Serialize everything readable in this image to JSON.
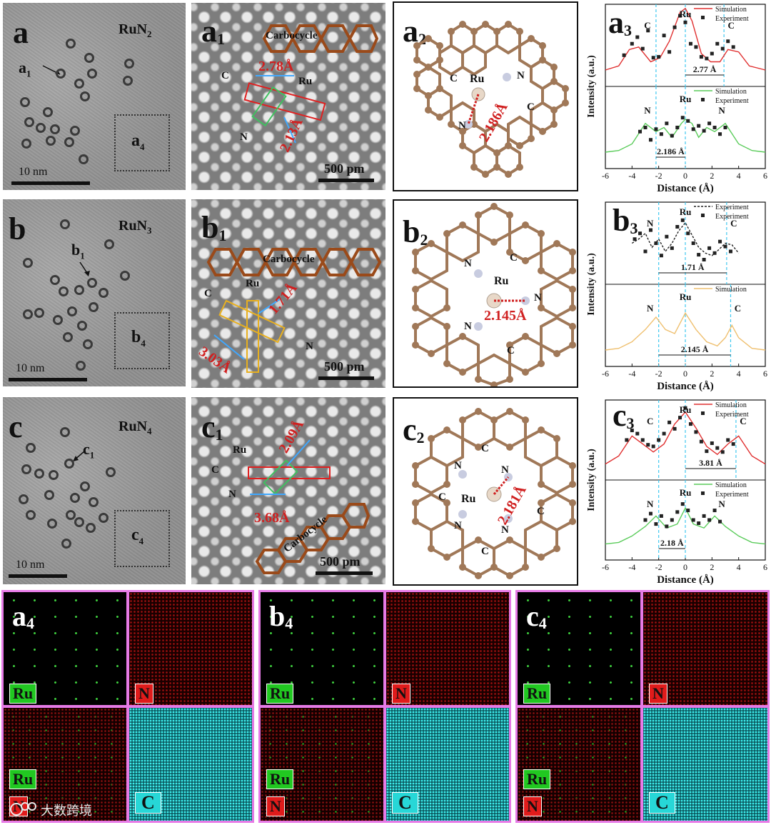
{
  "row_a": {
    "tem": {
      "label": "a",
      "formula_el": "RuN",
      "formula_sub": "2",
      "pointer": "a",
      "pointer_sub": "1",
      "box": "a",
      "box_sub": "4",
      "scale": "10 nm"
    },
    "hr": {
      "label": "a",
      "label_sub": "1",
      "carbocycle": "Carbocycle",
      "d1": "2.78Å",
      "d2": "2.13Å",
      "c": "C",
      "ru": "Ru",
      "n": "N",
      "scale": "500 pm"
    },
    "struct": {
      "label": "a",
      "label_sub": "2",
      "ru": "Ru",
      "n": "N",
      "c": "C",
      "bond": "2.186Å"
    },
    "plot": {
      "label": "a",
      "label_sub": "3"
    }
  },
  "row_b": {
    "tem": {
      "label": "b",
      "formula_el": "RuN",
      "formula_sub": "3",
      "pointer": "b",
      "pointer_sub": "1",
      "box": "b",
      "box_sub": "4",
      "scale": "10 nm"
    },
    "hr": {
      "label": "b",
      "label_sub": "1",
      "carbocycle": "Carbocycle",
      "d1": "1.71Å",
      "d2": "3.03Å",
      "c": "C",
      "ru": "Ru",
      "n": "N",
      "scale": "500 pm"
    },
    "struct": {
      "label": "b",
      "label_sub": "2",
      "ru": "Ru",
      "n": "N",
      "c": "C",
      "bond": "2.145Å"
    },
    "plot": {
      "label": "b",
      "label_sub": "3"
    }
  },
  "row_c": {
    "tem": {
      "label": "c",
      "formula_el": "RuN",
      "formula_sub": "4",
      "pointer": "c",
      "pointer_sub": "1",
      "box": "c",
      "box_sub": "4",
      "scale": "10 nm"
    },
    "hr": {
      "label": "c",
      "label_sub": "1",
      "carbocycle": "Carbocycle",
      "d1": "2.09Å",
      "d2": "3.68Å",
      "c": "C",
      "ru": "Ru",
      "n": "N",
      "scale": "500 pm"
    },
    "struct": {
      "label": "c",
      "label_sub": "2",
      "ru": "Ru",
      "n": "N",
      "c": "C",
      "bond": "2.181Å"
    },
    "plot": {
      "label": "c",
      "label_sub": "3"
    }
  },
  "eds": [
    {
      "label": "a",
      "label_sub": "4",
      "ru": "Ru",
      "n": "N",
      "c": "C"
    },
    {
      "label": "b",
      "label_sub": "4",
      "ru": "Ru",
      "n": "N",
      "c": "C"
    },
    {
      "label": "c",
      "label_sub": "4",
      "ru": "Ru",
      "n": "N",
      "c": "C"
    }
  ],
  "watermark": "大数跨境",
  "chart_data": [
    {
      "type": "line",
      "panel": "a3",
      "xlabel": "Distance (Å)",
      "ylabel": "Intensity (a.u.)",
      "xlim": [
        -6,
        6
      ],
      "xticks": [
        "-6",
        "-4",
        "-2",
        "0",
        "2",
        "4",
        "6"
      ],
      "top": {
        "legend": [
          "Simulation",
          "Experiment"
        ],
        "color": "#e03030",
        "labels": [
          "C",
          "Ru",
          "C"
        ],
        "annotation": "2.77 Å",
        "sim_x": [
          -6,
          -5,
          -4.2,
          -3.5,
          -2.6,
          -1.9,
          -1.2,
          -0.4,
          0,
          0.5,
          1.2,
          1.9,
          2.6,
          3.2,
          4,
          4.8,
          6
        ],
        "sim_y": [
          0.2,
          0.25,
          0.45,
          0.48,
          0.3,
          0.35,
          0.55,
          0.9,
          0.95,
          0.8,
          0.4,
          0.3,
          0.3,
          0.45,
          0.42,
          0.25,
          0.2
        ],
        "exp_x": [
          -4.6,
          -4.0,
          -3.6,
          -3.2,
          -2.8,
          -2.4,
          -2.0,
          -1.6,
          -1.2,
          -0.8,
          -0.4,
          0.0,
          0.4,
          0.8,
          1.2,
          1.6,
          2.0,
          2.4,
          2.8,
          3.2,
          3.6
        ],
        "exp_y": [
          0.38,
          0.52,
          0.6,
          0.46,
          0.68,
          0.35,
          0.36,
          0.62,
          0.42,
          0.72,
          0.86,
          0.78,
          0.52,
          0.48,
          0.36,
          0.34,
          0.4,
          0.52,
          0.46,
          0.55,
          0.48
        ],
        "vlines": [
          -2.2,
          0,
          2.9
        ]
      },
      "bottom": {
        "legend": [
          "Simulation",
          "Experiment"
        ],
        "color": "#5ccc5c",
        "labels": [
          "N",
          "Ru",
          "N"
        ],
        "annotation": "2.186 Å",
        "sim_x": [
          -6,
          -5,
          -4,
          -3,
          -2.2,
          -1.6,
          -1,
          -0.3,
          0,
          0.5,
          1,
          1.6,
          2.2,
          3,
          4,
          5,
          6
        ],
        "sim_y": [
          0.2,
          0.22,
          0.3,
          0.55,
          0.45,
          0.5,
          0.38,
          0.55,
          0.6,
          0.55,
          0.38,
          0.5,
          0.45,
          0.55,
          0.3,
          0.22,
          0.2
        ],
        "exp_x": [
          -3.4,
          -3.0,
          -2.6,
          -2.2,
          -1.8,
          -1.4,
          -1.0,
          -0.6,
          -0.2,
          0.2,
          0.6,
          1.0,
          1.4,
          1.8,
          2.2,
          2.6,
          3.0
        ],
        "exp_y": [
          0.45,
          0.5,
          0.35,
          0.48,
          0.42,
          0.55,
          0.4,
          0.5,
          0.62,
          0.58,
          0.48,
          0.52,
          0.46,
          0.55,
          0.5,
          0.42,
          0.5
        ],
        "vlines": [
          -2.2,
          0
        ]
      }
    },
    {
      "type": "line",
      "panel": "b3",
      "xlabel": "Distance (Å)",
      "ylabel": "Intensity (a.u.)",
      "xlim": [
        -6,
        6
      ],
      "xticks": [
        "-6",
        "-4",
        "-2",
        "0",
        "2",
        "4",
        "6"
      ],
      "top": {
        "legend": [
          "Experiment",
          "Experiment"
        ],
        "color": "#222222",
        "labels": [
          "N",
          "Ru",
          "C"
        ],
        "annotation": "1.71 Å",
        "sim_x": [
          -4,
          -3.5,
          -3,
          -2.5,
          -2,
          -1.5,
          -1,
          -0.5,
          0,
          0.5,
          1,
          1.5,
          2,
          2.5,
          3,
          3.5,
          4
        ],
        "sim_y": [
          0.5,
          0.55,
          0.62,
          0.45,
          0.55,
          0.4,
          0.5,
          0.65,
          0.75,
          0.6,
          0.45,
          0.38,
          0.35,
          0.42,
          0.5,
          0.48,
          0.38
        ],
        "exp_x": [
          -3.8,
          -3.4,
          -3.0,
          -2.6,
          -2.2,
          -1.8,
          -1.4,
          -1.0,
          -0.6,
          -0.2,
          0.2,
          0.6,
          1.0,
          1.4,
          1.8,
          2.2,
          2.6,
          3.0,
          3.4
        ],
        "exp_y": [
          0.55,
          0.62,
          0.4,
          0.66,
          0.5,
          0.35,
          0.58,
          0.44,
          0.7,
          0.78,
          0.62,
          0.5,
          0.36,
          0.3,
          0.44,
          0.38,
          0.52,
          0.46,
          0.4
        ],
        "vlines": [
          -2.0,
          0,
          3.1
        ]
      },
      "bottom": {
        "legend": [
          "Simulation"
        ],
        "color": "#efc070",
        "labels": [
          "N",
          "Ru",
          "C"
        ],
        "annotation": "2.145 Å",
        "sim_x": [
          -6,
          -5,
          -4,
          -3,
          -2.2,
          -1.5,
          -0.8,
          0,
          0.8,
          1.6,
          2.4,
          3,
          3.5,
          4,
          5,
          6
        ],
        "sim_y": [
          0.2,
          0.22,
          0.3,
          0.45,
          0.6,
          0.45,
          0.4,
          0.65,
          0.45,
          0.3,
          0.25,
          0.35,
          0.5,
          0.35,
          0.22,
          0.2
        ],
        "exp_x": [],
        "exp_y": [],
        "vlines": [
          -2.0,
          0,
          3.4
        ]
      }
    },
    {
      "type": "line",
      "panel": "c3",
      "xlabel": "Distance (Å)",
      "ylabel": "Intensity (a.u.)",
      "xlim": [
        -6,
        6
      ],
      "xticks": [
        "-6",
        "-4",
        "-2",
        "0",
        "2",
        "4",
        "6"
      ],
      "top": {
        "legend": [
          "Simulation",
          "Experiment"
        ],
        "color": "#e03030",
        "labels": [
          "C",
          "Ru",
          "C"
        ],
        "annotation": "3.81 Å",
        "sim_x": [
          -6,
          -5,
          -4,
          -3.2,
          -2.4,
          -1.6,
          -0.8,
          0,
          0.8,
          1.6,
          2.4,
          3.2,
          4,
          5,
          6
        ],
        "sim_y": [
          0.2,
          0.3,
          0.55,
          0.45,
          0.35,
          0.45,
          0.7,
          0.85,
          0.65,
          0.42,
          0.32,
          0.45,
          0.55,
          0.3,
          0.2
        ],
        "exp_x": [
          -4.4,
          -4.0,
          -3.6,
          -3.2,
          -2.8,
          -2.4,
          -2.0,
          -1.6,
          -1.2,
          -0.8,
          -0.4,
          0.0,
          0.4,
          0.8,
          1.2,
          1.6,
          2.0,
          2.4,
          2.8,
          3.2,
          3.6
        ],
        "exp_y": [
          0.5,
          0.62,
          0.58,
          0.5,
          0.44,
          0.42,
          0.5,
          0.58,
          0.72,
          0.64,
          0.78,
          0.9,
          0.7,
          0.6,
          0.48,
          0.36,
          0.46,
          0.4,
          0.35,
          0.5,
          0.45
        ],
        "vlines": [
          -2.0,
          0,
          3.8
        ]
      },
      "bottom": {
        "legend": [
          "Simulation",
          "Experiment"
        ],
        "color": "#5ccc5c",
        "labels": [
          "N",
          "Ru",
          "N"
        ],
        "annotation": "2.18 Å",
        "sim_x": [
          -6,
          -5,
          -4,
          -3,
          -2.2,
          -1.4,
          -0.6,
          0,
          0.6,
          1.4,
          2.2,
          3,
          4,
          5,
          6
        ],
        "sim_y": [
          0.2,
          0.22,
          0.3,
          0.42,
          0.55,
          0.4,
          0.45,
          0.65,
          0.45,
          0.4,
          0.55,
          0.42,
          0.3,
          0.22,
          0.2
        ],
        "exp_x": [
          -3.0,
          -2.6,
          -2.2,
          -1.8,
          -1.4,
          -1.0,
          -0.6,
          -0.2,
          0.2,
          0.6,
          1.0,
          1.4,
          1.8,
          2.2,
          2.6
        ],
        "exp_y": [
          0.5,
          0.58,
          0.45,
          0.55,
          0.42,
          0.5,
          0.6,
          0.7,
          0.62,
          0.5,
          0.46,
          0.55,
          0.5,
          0.62,
          0.48
        ],
        "vlines": [
          -2.0,
          0
        ]
      }
    }
  ]
}
